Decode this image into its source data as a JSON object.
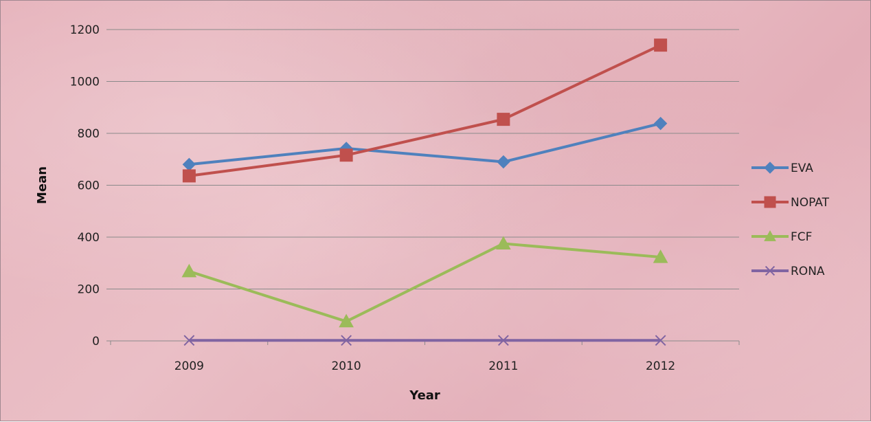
{
  "chart_data": {
    "type": "line",
    "title": "",
    "xlabel": "Year",
    "ylabel": "Mean",
    "categories": [
      "2009",
      "2010",
      "2011",
      "2012"
    ],
    "ylim": [
      0,
      1200
    ],
    "yticks": [
      0,
      200,
      400,
      600,
      800,
      1000,
      1200
    ],
    "grid": true,
    "legend_position": "right",
    "series": [
      {
        "name": "EVA",
        "values": [
          680,
          742,
          690,
          838
        ],
        "color": "#4f81bd",
        "marker": "diamond"
      },
      {
        "name": "NOPAT",
        "values": [
          636,
          716,
          854,
          1140
        ],
        "color": "#c0504d",
        "marker": "square"
      },
      {
        "name": "FCF",
        "values": [
          268,
          75,
          375,
          323
        ],
        "color": "#9bbb59",
        "marker": "triangle"
      },
      {
        "name": "RONA",
        "values": [
          2,
          2,
          2,
          2
        ],
        "color": "#8064a2",
        "marker": "x"
      }
    ]
  }
}
